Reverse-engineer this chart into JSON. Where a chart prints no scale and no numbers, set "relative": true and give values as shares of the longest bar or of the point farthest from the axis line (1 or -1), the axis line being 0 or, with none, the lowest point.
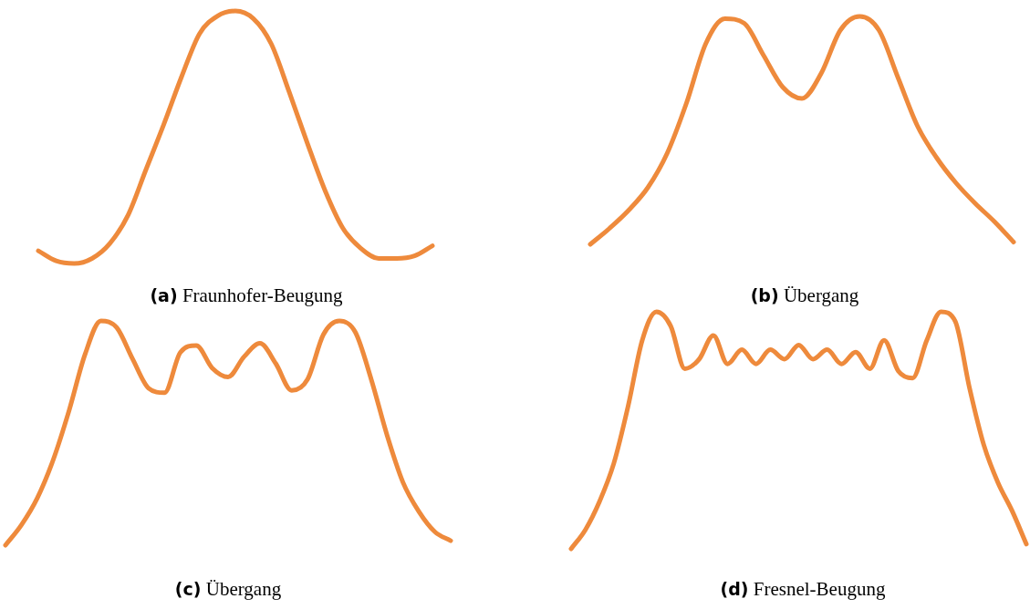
{
  "chart_data": [
    {
      "type": "line",
      "title": "(a) Fraunhofer-Beugung",
      "relative": true,
      "color": "#ee8a3c",
      "categories": [
        null,
        null,
        null,
        null,
        null,
        null,
        null,
        null,
        null,
        null,
        null,
        null,
        null,
        null,
        null,
        null,
        null,
        null,
        null,
        null,
        null,
        null,
        null
      ],
      "values": [
        0.05,
        0.01,
        0,
        0.02,
        0.08,
        0.19,
        0.37,
        0.55,
        0.74,
        0.91,
        0.98,
        1,
        0.97,
        0.87,
        0.68,
        0.48,
        0.29,
        0.14,
        0.06,
        0.02,
        0.02,
        0.03,
        0.07
      ]
    },
    {
      "type": "line",
      "title": "(b) Übergang",
      "relative": true,
      "color": "#ee8a3c",
      "categories": [
        null,
        null,
        null,
        null,
        null,
        null,
        null,
        null,
        null,
        null,
        null,
        null,
        null,
        null,
        null,
        null,
        null,
        null,
        null,
        null,
        null,
        null,
        null
      ],
      "values": [
        0,
        0.07,
        0.15,
        0.25,
        0.4,
        0.62,
        0.88,
        0.99,
        0.97,
        0.83,
        0.69,
        0.64,
        0.75,
        0.94,
        1,
        0.94,
        0.73,
        0.52,
        0.38,
        0.27,
        0.18,
        0.1,
        0.01
      ]
    },
    {
      "type": "line",
      "title": "(c) Übergang",
      "relative": true,
      "color": "#ee8a3c",
      "categories": [
        null,
        null,
        null,
        null,
        null,
        null,
        null,
        null,
        null,
        null,
        null,
        null,
        null,
        null,
        null,
        null,
        null,
        null,
        null,
        null,
        null,
        null,
        null,
        null,
        null,
        null,
        null,
        null,
        null
      ],
      "values": [
        0,
        0.09,
        0.21,
        0.38,
        0.6,
        0.85,
        1,
        0.97,
        0.83,
        0.7,
        0.68,
        0.86,
        0.89,
        0.79,
        0.75,
        0.84,
        0.9,
        0.81,
        0.69,
        0.74,
        0.94,
        1,
        0.95,
        0.74,
        0.49,
        0.28,
        0.15,
        0.06,
        0.02
      ]
    },
    {
      "type": "line",
      "title": "(d) Fresnel-Beugung",
      "relative": true,
      "color": "#ee8a3c",
      "categories": [
        null,
        null,
        null,
        null,
        null,
        null,
        null,
        null,
        null,
        null,
        null,
        null,
        null,
        null,
        null,
        null,
        null,
        null,
        null,
        null,
        null,
        null,
        null,
        null,
        null,
        null,
        null,
        null,
        null,
        null,
        null,
        null,
        null
      ],
      "values": [
        0,
        0.08,
        0.2,
        0.36,
        0.6,
        0.88,
        1,
        0.94,
        0.76,
        0.8,
        0.9,
        0.78,
        0.84,
        0.78,
        0.84,
        0.8,
        0.86,
        0.8,
        0.84,
        0.78,
        0.83,
        0.76,
        0.88,
        0.75,
        0.72,
        0.88,
        1,
        0.96,
        0.68,
        0.44,
        0.28,
        0.16,
        0.02
      ]
    }
  ]
}
